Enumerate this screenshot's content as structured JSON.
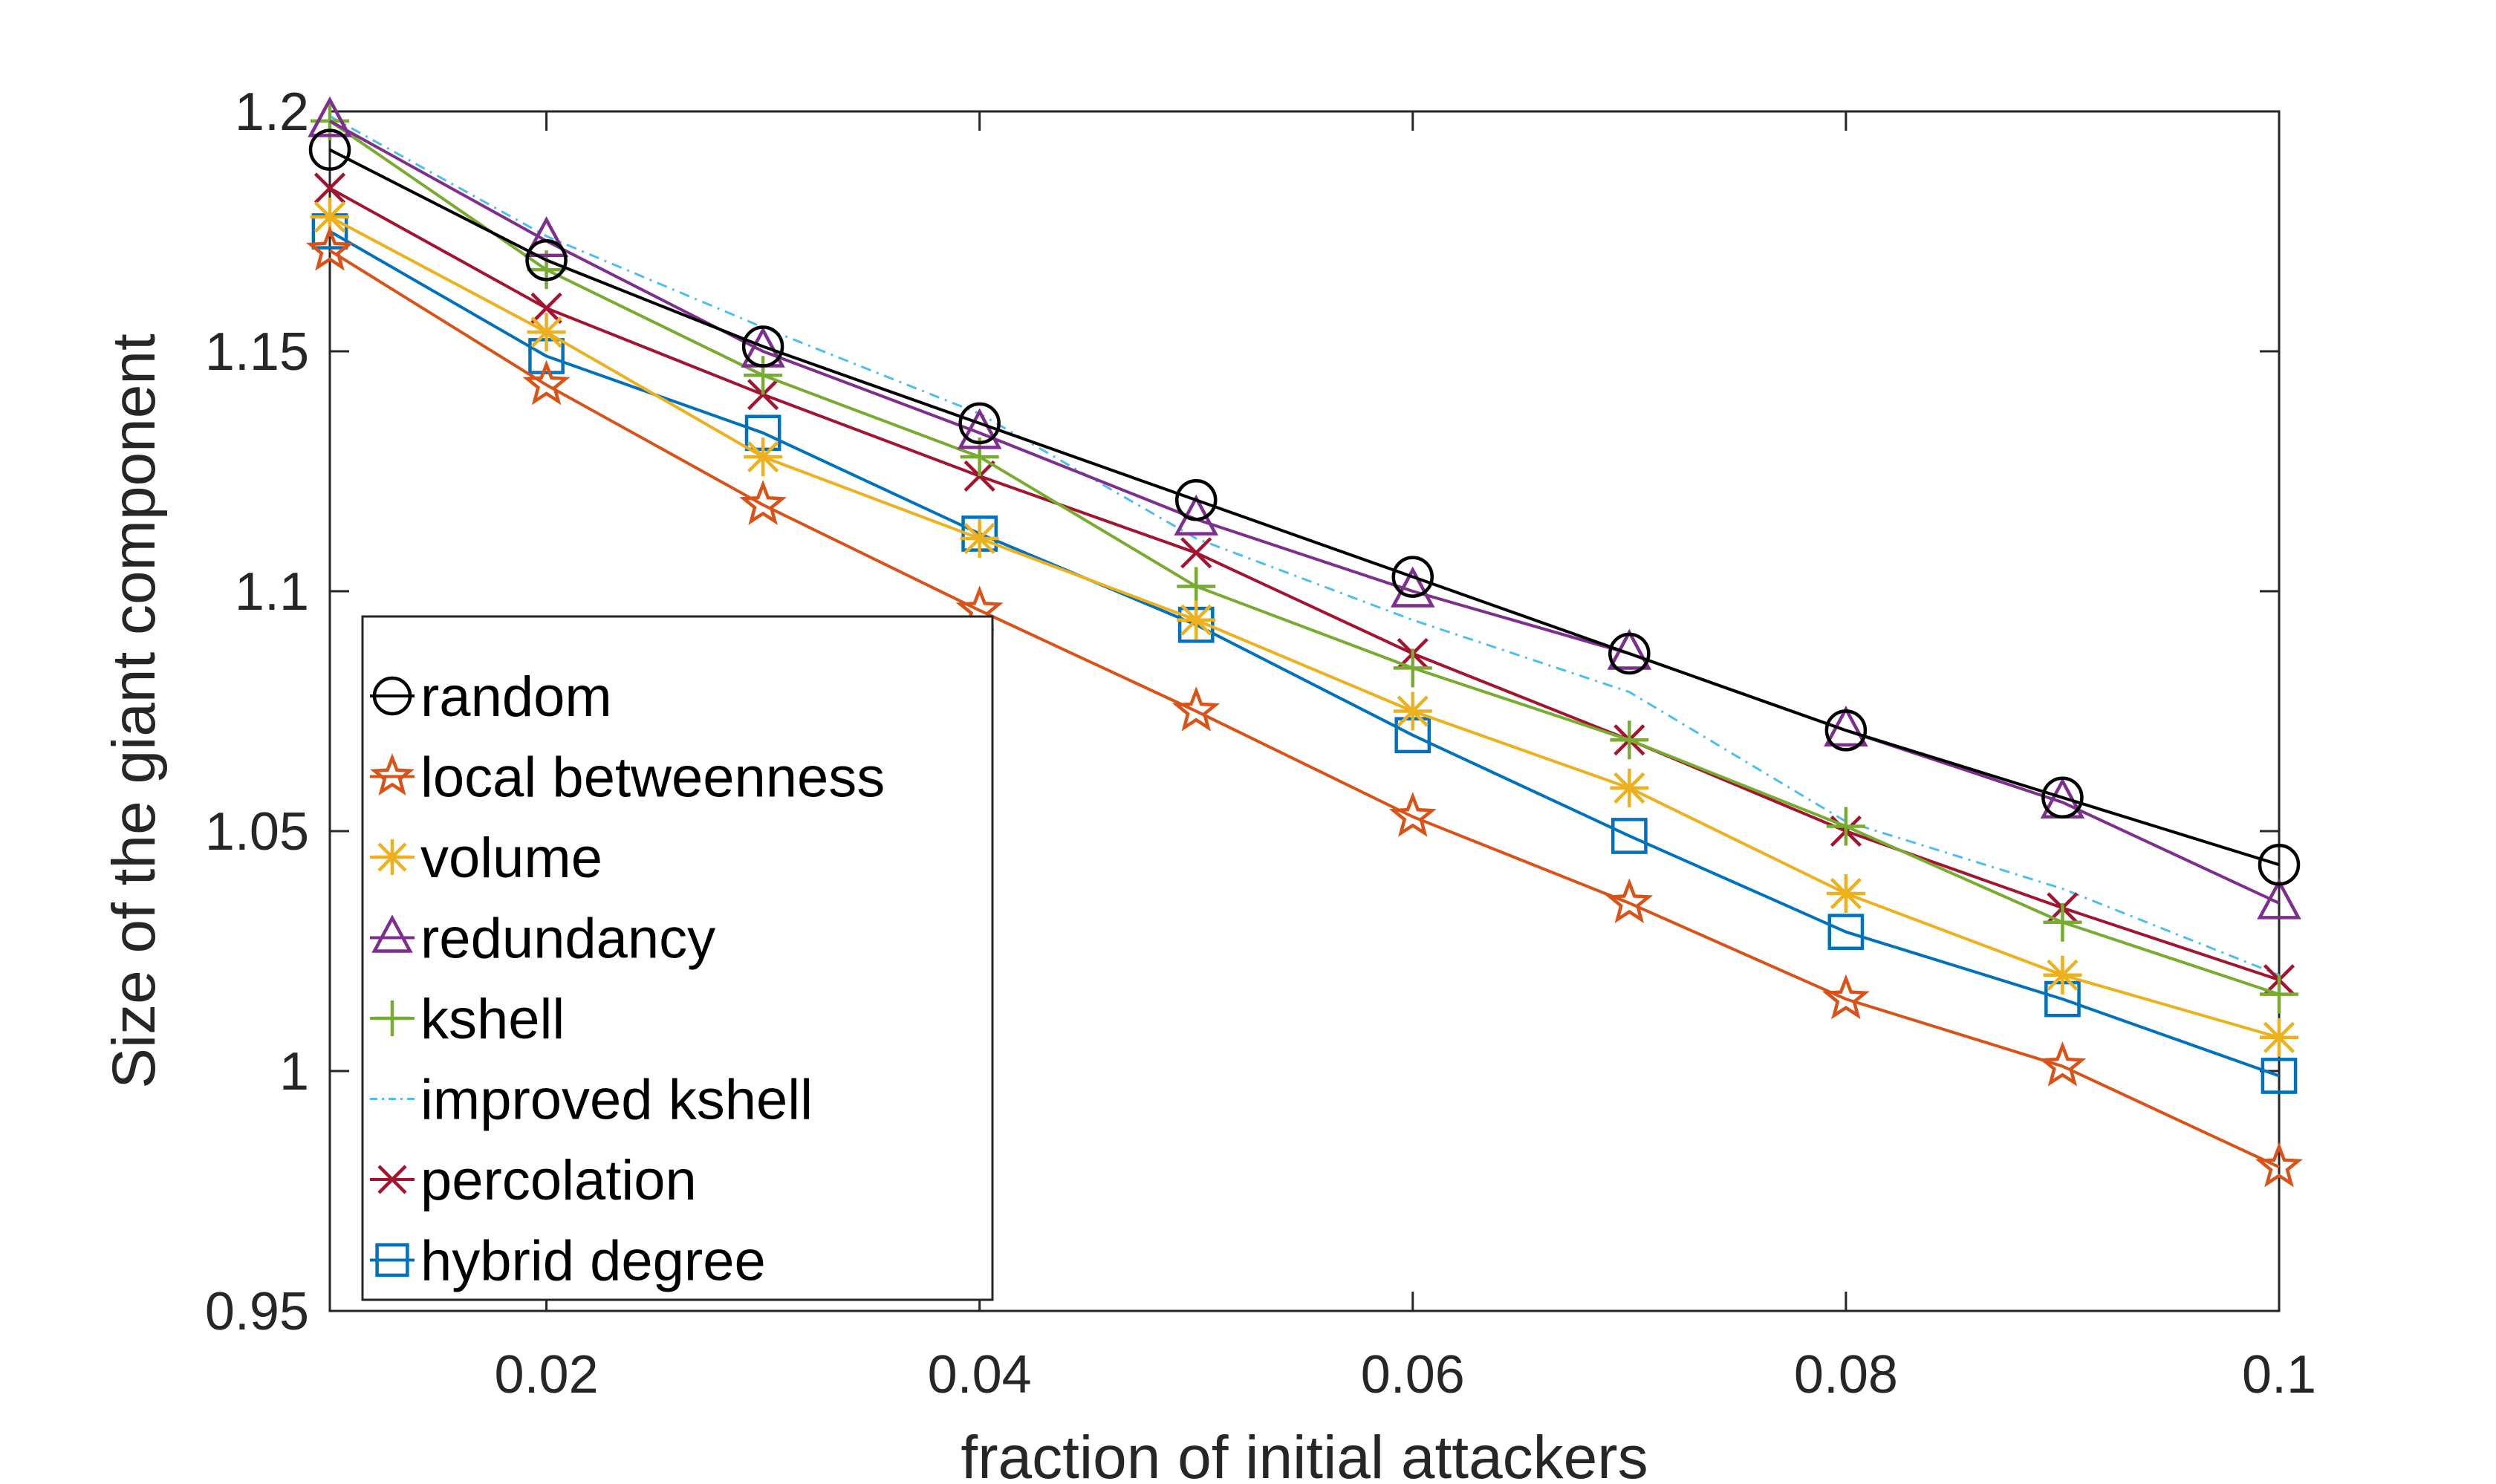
{
  "chart_data": {
    "type": "line",
    "title": "",
    "xlabel": "fraction of initial attackers",
    "ylabel": "Size of the giant component",
    "xlim": [
      0.01,
      0.1
    ],
    "ylim": [
      0.95,
      1.2
    ],
    "xticks": [
      0.02,
      0.04,
      0.06,
      0.08,
      0.1
    ],
    "xtick_labels": [
      "0.02",
      "0.04",
      "0.06",
      "0.08",
      "0.1"
    ],
    "yticks": [
      0.95,
      1.0,
      1.05,
      1.1,
      1.15,
      1.2
    ],
    "ytick_labels": [
      "0.95",
      "1",
      "1.05",
      "1.1",
      "1.15",
      "1.2"
    ],
    "grid": false,
    "legend_position": "bottom-left",
    "x": [
      0.01,
      0.02,
      0.03,
      0.04,
      0.05,
      0.06,
      0.07,
      0.08,
      0.09,
      0.1
    ],
    "series": [
      {
        "name": "random",
        "color": "#000000",
        "marker": "circle",
        "dash": "",
        "values": [
          1.192,
          1.169,
          1.151,
          1.135,
          1.119,
          1.103,
          1.087,
          1.071,
          1.057,
          1.043
        ]
      },
      {
        "name": "local betweenness",
        "color": "#D95319",
        "marker": "star",
        "dash": "",
        "values": [
          1.171,
          1.143,
          1.118,
          1.096,
          1.075,
          1.053,
          1.035,
          1.015,
          1.001,
          0.98
        ]
      },
      {
        "name": "volume",
        "color": "#EDB120",
        "marker": "asterisk",
        "dash": "",
        "values": [
          1.178,
          1.154,
          1.128,
          1.111,
          1.094,
          1.075,
          1.059,
          1.037,
          1.02,
          1.007
        ]
      },
      {
        "name": "redundancy",
        "color": "#7E2F8E",
        "marker": "triangle",
        "dash": "",
        "values": [
          1.198,
          1.173,
          1.15,
          1.133,
          1.115,
          1.1,
          1.087,
          1.071,
          1.056,
          1.035
        ]
      },
      {
        "name": "kshell",
        "color": "#77AC30",
        "marker": "plus",
        "dash": "",
        "values": [
          1.198,
          1.167,
          1.145,
          1.128,
          1.101,
          1.084,
          1.069,
          1.051,
          1.031,
          1.016
        ]
      },
      {
        "name": "improved kshell",
        "color": "#4DBEEE",
        "marker": "none",
        "dash": "14,8,3,8",
        "values": [
          1.199,
          1.174,
          1.155,
          1.137,
          1.111,
          1.094,
          1.079,
          1.052,
          1.038,
          1.02
        ]
      },
      {
        "name": "percolation",
        "color": "#A2142F",
        "marker": "x",
        "dash": "",
        "values": [
          1.184,
          1.159,
          1.141,
          1.124,
          1.108,
          1.087,
          1.069,
          1.05,
          1.034,
          1.019
        ]
      },
      {
        "name": "hybrid degree",
        "color": "#0072BD",
        "marker": "square",
        "dash": "",
        "values": [
          1.175,
          1.149,
          1.133,
          1.112,
          1.093,
          1.07,
          1.049,
          1.029,
          1.015,
          0.999
        ]
      }
    ]
  }
}
